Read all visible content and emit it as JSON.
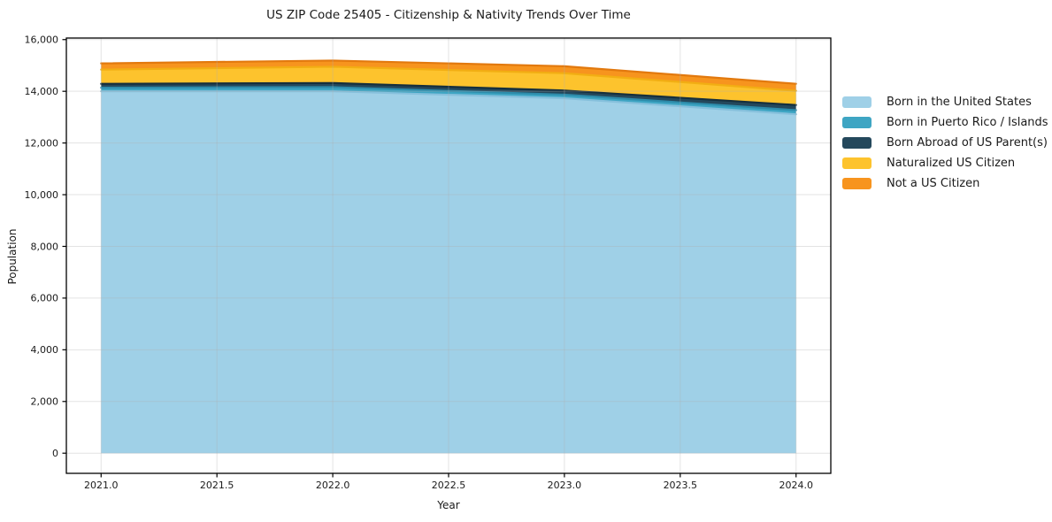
{
  "chart_data": {
    "type": "area",
    "stacked": true,
    "title": "US ZIP Code 25405 - Citizenship & Nativity Trends Over Time",
    "xlabel": "Year",
    "ylabel": "Population",
    "x": [
      2021,
      2022,
      2023,
      2024
    ],
    "series": [
      {
        "name": "Born in the United States",
        "color": "#9fd0e7",
        "edge_color": "#86c0dc",
        "values": [
          14000,
          14000,
          13730,
          13110
        ]
      },
      {
        "name": "Born in Puerto Rico / Islands",
        "color": "#3ea5c3",
        "edge_color": "#2d8cab",
        "values": [
          140,
          160,
          140,
          160
        ]
      },
      {
        "name": "Born Abroad of US Parent(s)",
        "color": "#24485c",
        "edge_color": "#152f3e",
        "values": [
          150,
          160,
          160,
          200
        ]
      },
      {
        "name": "Naturalized US Citizen",
        "color": "#fdc32d",
        "edge_color": "#f2ae13",
        "values": [
          550,
          630,
          670,
          550
        ]
      },
      {
        "name": "Not a US Citizen",
        "color": "#f7941e",
        "edge_color": "#e2790e",
        "values": [
          240,
          240,
          270,
          270
        ]
      }
    ],
    "x_ticks": {
      "values": [
        2021,
        2021.5,
        2022,
        2022.5,
        2023,
        2023.5,
        2024
      ],
      "labels": [
        "2021.0",
        "2021.5",
        "2022.0",
        "2022.5",
        "2023.0",
        "2023.5",
        "2024.0"
      ]
    },
    "y_ticks": {
      "values": [
        0,
        2000,
        4000,
        6000,
        8000,
        10000,
        12000,
        14000,
        16000
      ],
      "labels": [
        "0",
        "2,000",
        "4,000",
        "6,000",
        "8,000",
        "10,000",
        "12,000",
        "14,000",
        "16,000"
      ]
    },
    "xlim": [
      2020.85,
      2024.15
    ],
    "ylim": [
      -780,
      16060
    ],
    "grid": true,
    "grid_color": "#b0b0b0",
    "spine_color": "#000000",
    "text_color": "#1a1a1a",
    "legend_position": "right"
  }
}
